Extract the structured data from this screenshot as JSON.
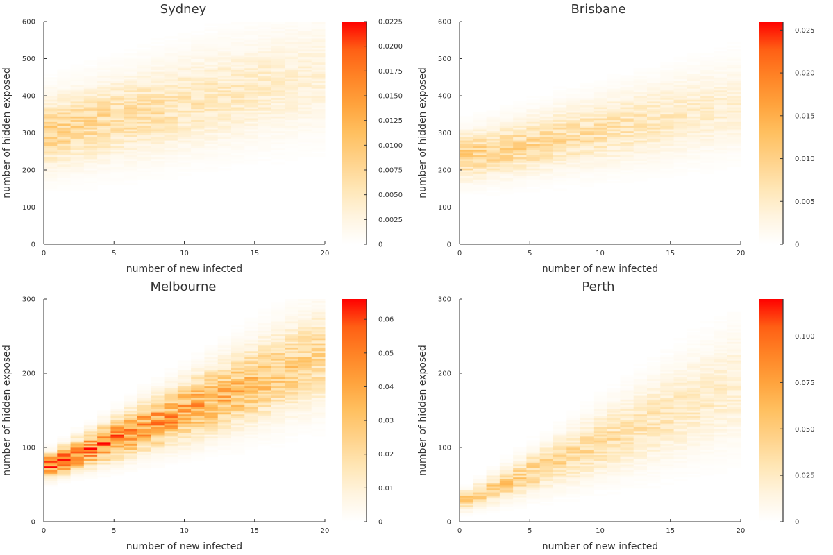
{
  "chart_data": [
    {
      "type": "heatmap",
      "title": "Sydney",
      "xlabel": "number of new infected",
      "ylabel": "number of hidden exposed",
      "xlim": [
        0,
        20
      ],
      "ylim": [
        0,
        600
      ],
      "xticks": [
        "0",
        "5",
        "10",
        "15",
        "20"
      ],
      "yticks": [
        "0",
        "100",
        "200",
        "300",
        "400",
        "500",
        "600"
      ],
      "colorbar": {
        "min": 0,
        "max": 0.0225,
        "ticks": [
          "0",
          "0.0025",
          "0.0050",
          "0.0075",
          "0.0100",
          "0.0125",
          "0.0150",
          "0.0175",
          "0.0200",
          "0.0225"
        ]
      },
      "density": {
        "mean_at_x0": 300,
        "mean_at_x20": 450,
        "spread_at_x0": 60,
        "spread_at_x20": 90,
        "peak_value": 0.008
      }
    },
    {
      "type": "heatmap",
      "title": "Brisbane",
      "xlabel": "number of new infected",
      "ylabel": "number of hidden exposed",
      "xlim": [
        0,
        20
      ],
      "ylim": [
        0,
        600
      ],
      "xticks": [
        "0",
        "5",
        "10",
        "15",
        "20"
      ],
      "yticks": [
        "0",
        "100",
        "200",
        "300",
        "400",
        "500",
        "600"
      ],
      "colorbar": {
        "min": 0,
        "max": 0.026,
        "ticks": [
          "0",
          "0.005",
          "0.010",
          "0.015",
          "0.020",
          "0.025"
        ]
      },
      "density": {
        "mean_at_x0": 235,
        "mean_at_x20": 370,
        "spread_at_x0": 40,
        "spread_at_x20": 70,
        "peak_value": 0.01
      }
    },
    {
      "type": "heatmap",
      "title": "Melbourne",
      "xlabel": "number of new infected",
      "ylabel": "number of hidden exposed",
      "xlim": [
        0,
        20
      ],
      "ylim": [
        0,
        300
      ],
      "xticks": [
        "0",
        "5",
        "10",
        "15",
        "20"
      ],
      "yticks": [
        "0",
        "100",
        "200",
        "300"
      ],
      "colorbar": {
        "min": 0,
        "max": 0.066,
        "ticks": [
          "0",
          "0.01",
          "0.02",
          "0.03",
          "0.04",
          "0.05",
          "0.06"
        ]
      },
      "density": {
        "mean_at_x0": 75,
        "mean_at_x20": 220,
        "spread_at_x0": 10,
        "spread_at_x20": 40,
        "peak_value": 0.055
      }
    },
    {
      "type": "heatmap",
      "title": "Perth",
      "xlabel": "number of new infected",
      "ylabel": "number of hidden exposed",
      "xlim": [
        0,
        20
      ],
      "ylim": [
        0,
        300
      ],
      "xticks": [
        "0",
        "5",
        "10",
        "15",
        "20"
      ],
      "yticks": [
        "0",
        "100",
        "200",
        "300"
      ],
      "colorbar": {
        "min": 0,
        "max": 0.12,
        "ticks": [
          "0",
          "0.025",
          "0.050",
          "0.075",
          "0.100"
        ]
      },
      "density": {
        "mean_at_x0": 28,
        "mean_at_x20": 180,
        "spread_at_x0": 8,
        "spread_at_x20": 45,
        "peak_value": 0.05
      }
    }
  ],
  "colors": {
    "colormap": [
      "#ffffff",
      "#fff4df",
      "#ffe6b5",
      "#ffd28a",
      "#ffc060",
      "#ffa33d",
      "#ff8426",
      "#ff5f14",
      "#ff0000"
    ],
    "text": "#333333",
    "axis": "#333333"
  }
}
